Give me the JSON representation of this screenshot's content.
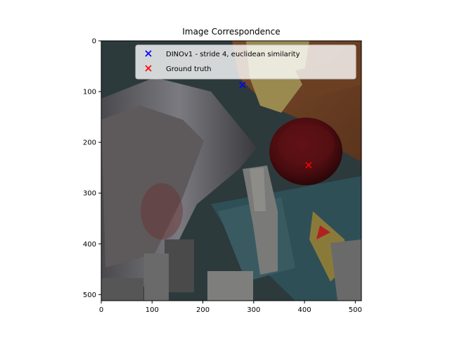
{
  "chart_data": {
    "type": "scatter",
    "title": "Image Correspondence",
    "xlabel": "",
    "ylabel": "",
    "xlim": [
      0,
      512
    ],
    "ylim": [
      512,
      0
    ],
    "x_ticks": [
      "0",
      "100",
      "200",
      "300",
      "400",
      "500"
    ],
    "y_ticks": [
      "0",
      "100",
      "200",
      "300",
      "400",
      "500"
    ],
    "background": "photographic scene image (512×512 pixels) shown as the plot area",
    "legend_position": "top-right",
    "grid": false,
    "series": [
      {
        "name": "DINOv1 - stride 4, euclidean similarity",
        "marker": "x",
        "color": "#0000ff",
        "points": [
          [
            278,
            87
          ]
        ]
      },
      {
        "name": "Ground truth",
        "marker": "x",
        "color": "#ff0000",
        "points": [
          [
            408,
            245
          ]
        ]
      }
    ]
  }
}
